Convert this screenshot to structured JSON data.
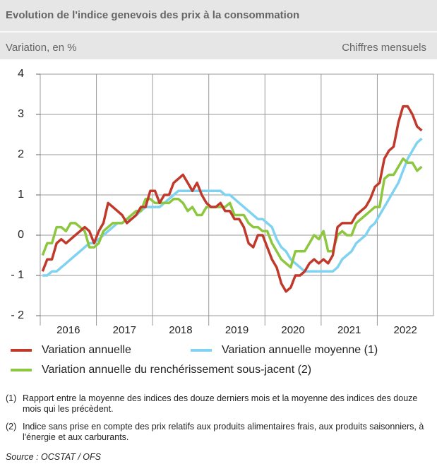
{
  "chart_data": {
    "type": "line",
    "title": "Evolution de l'indice genevois des prix à la consommation",
    "subtitle": "Variation, en %",
    "note_right": "Chiffres mensuels",
    "categories": [
      null,
      null,
      null,
      null,
      null,
      null,
      "2016",
      null,
      null,
      null,
      null,
      null,
      null,
      null,
      null,
      null,
      null,
      null,
      "2017",
      null,
      null,
      null,
      null,
      null,
      null,
      null,
      null,
      null,
      null,
      null,
      "2018",
      null,
      null,
      null,
      null,
      null,
      null,
      null,
      null,
      null,
      null,
      null,
      "2019",
      null,
      null,
      null,
      null,
      null,
      null,
      null,
      null,
      null,
      null,
      null,
      "2020",
      null,
      null,
      null,
      null,
      null,
      null,
      null,
      null,
      null,
      null,
      null,
      "2021",
      null,
      null,
      null,
      null,
      null,
      null,
      null,
      null,
      null,
      null,
      null,
      "2022",
      null,
      null,
      null
    ],
    "ylim": [
      -2,
      4
    ],
    "yticks": [
      {
        "value": -2,
        "label": "- 2"
      },
      {
        "value": -1,
        "label": "- 1"
      },
      0,
      1,
      2,
      3,
      4
    ],
    "grid": true,
    "series": [
      {
        "name": "Variation annuelle",
        "color": "#c0392b",
        "values": [
          -0.9,
          -0.6,
          -0.6,
          -0.2,
          -0.1,
          -0.2,
          -0.1,
          0,
          0.1,
          0.2,
          0.1,
          -0.2,
          0.1,
          0.3,
          0.8,
          0.7,
          0.6,
          0.5,
          0.3,
          0.4,
          0.5,
          0.7,
          0.7,
          1.1,
          1.1,
          0.8,
          1.0,
          1.0,
          1.3,
          1.4,
          1.5,
          1.3,
          1.1,
          1.3,
          1.0,
          0.8,
          0.7,
          0.7,
          0.8,
          0.6,
          0.6,
          0.4,
          0.4,
          0.2,
          -0.2,
          -0.3,
          0,
          0,
          -0.3,
          -0.6,
          -0.8,
          -1.2,
          -1.4,
          -1.3,
          -1.0,
          -1.0,
          -0.9,
          -0.7,
          -0.6,
          -0.7,
          -0.6,
          -0.7,
          -0.5,
          0.2,
          0.3,
          0.3,
          0.3,
          0.5,
          0.6,
          0.7,
          0.9,
          1.2,
          1.3,
          1.9,
          2.1,
          2.2,
          2.8,
          3.2,
          3.2,
          3.0,
          2.7,
          2.6
        ]
      },
      {
        "name": "Variation annuelle moyenne (1)",
        "color": "#7fd3f0",
        "values": [
          -1.0,
          -1.0,
          -0.9,
          -0.9,
          -0.8,
          -0.7,
          -0.6,
          -0.5,
          -0.4,
          -0.3,
          -0.2,
          -0.2,
          -0.1,
          0,
          0.1,
          0.2,
          0.3,
          0.3,
          0.4,
          0.4,
          0.5,
          0.6,
          0.7,
          0.7,
          0.7,
          0.7,
          0.8,
          0.9,
          1.0,
          1.1,
          1.1,
          1.1,
          1.1,
          1.1,
          1.1,
          1.1,
          1.1,
          1.1,
          1.1,
          1.0,
          1.0,
          0.9,
          0.8,
          0.7,
          0.6,
          0.5,
          0.4,
          0.4,
          0.3,
          0.2,
          -0.1,
          -0.3,
          -0.4,
          -0.6,
          -0.7,
          -0.8,
          -0.9,
          -0.9,
          -0.9,
          -0.9,
          -0.9,
          -0.9,
          -0.9,
          -0.8,
          -0.6,
          -0.5,
          -0.4,
          -0.2,
          -0.1,
          0,
          0.2,
          0.3,
          0.5,
          0.7,
          0.9,
          1.1,
          1.3,
          1.6,
          1.9,
          2.1,
          2.3,
          2.4
        ]
      },
      {
        "name": "Variation annuelle du renchérissement sous-jacent (2)",
        "color": "#8dc63f",
        "values": [
          -0.5,
          -0.2,
          -0.2,
          0.2,
          0.2,
          0.1,
          0.3,
          0.3,
          0.2,
          0.1,
          -0.3,
          -0.3,
          -0.2,
          0.1,
          0.2,
          0.3,
          0.3,
          0.3,
          0.4,
          0.5,
          0.6,
          0.6,
          0.9,
          0.9,
          0.8,
          0.8,
          0.8,
          0.8,
          0.9,
          0.9,
          0.8,
          0.6,
          0.7,
          0.5,
          0.5,
          0.7,
          0.7,
          0.7,
          0.7,
          0.7,
          0.8,
          0.5,
          0.5,
          0.5,
          0.3,
          0.2,
          0.2,
          0.1,
          0.1,
          -0.2,
          -0.4,
          -0.6,
          -0.7,
          -0.8,
          -0.4,
          -0.4,
          -0.4,
          -0.2,
          0,
          -0.1,
          0.1,
          -0.4,
          -0.4,
          0,
          0.1,
          0,
          0,
          0.3,
          0.4,
          0.5,
          0.6,
          0.7,
          0.7,
          1.4,
          1.5,
          1.5,
          1.7,
          1.9,
          1.8,
          1.8,
          1.6,
          1.7
        ]
      }
    ],
    "footnotes": [
      {
        "mark": "(1)",
        "text": "Rapport entre la moyenne des indices des douze derniers mois et la moyenne des indices des douze mois qui les précèdent."
      },
      {
        "mark": "(2)",
        "text": "Indice sans prise en compte des prix relatifs aux produits alimentaires frais, aux produits saisonniers, à l'énergie et aux carburants."
      }
    ],
    "source": "Source : OCSTAT / OFS"
  }
}
